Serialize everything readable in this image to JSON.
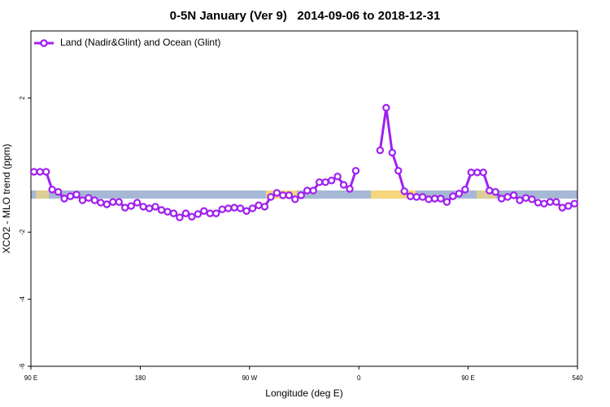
{
  "chart_data": {
    "type": "line",
    "title": "0-5N January (Ver 9)   2014-09-06 to 2018-12-31",
    "x_label": "Longitude (deg E)",
    "y_label": "XCO2 - MLO trend (ppm)",
    "xlim": [
      90,
      540
    ],
    "ylim": [
      -6,
      4
    ],
    "xticks": [
      {
        "value": 90,
        "label": "90 E"
      },
      180,
      {
        "value": 270,
        "label": "90 W"
      },
      {
        "value": 360,
        "label": "0"
      },
      {
        "value": 450,
        "label": "90 E"
      },
      540
    ],
    "yticks": [
      -6,
      -4,
      -2,
      2
    ],
    "legend": "top-left",
    "x": [
      92.5,
      97.5,
      102.5,
      107.5,
      112.5,
      117.5,
      122.5,
      127.5,
      132.5,
      137.5,
      142.5,
      147.5,
      152.5,
      157.5,
      162.5,
      167.5,
      172.5,
      177.5,
      182.5,
      187.5,
      192.5,
      197.5,
      202.5,
      207.5,
      212.5,
      217.5,
      222.5,
      227.5,
      232.5,
      237.5,
      242.5,
      247.5,
      252.5,
      257.5,
      262.5,
      267.5,
      272.5,
      277.5,
      282.5,
      287.5,
      292.5,
      297.5,
      302.5,
      307.5,
      312.5,
      317.5,
      322.5,
      327.5,
      332.5,
      337.5,
      342.5,
      347.5,
      352.5,
      357.5,
      362.5,
      367.5,
      372.5,
      377.5,
      382.5,
      387.5,
      392.5,
      397.5,
      402.5,
      407.5,
      412.5,
      417.5,
      422.5,
      427.5,
      432.5,
      437.5,
      442.5,
      447.5,
      452.5,
      457.5,
      462.5,
      467.5,
      472.5,
      477.5,
      482.5,
      487.5,
      492.5,
      497.5,
      502.5,
      507.5,
      512.5,
      517.5,
      522.5,
      527.5,
      532.5,
      537.5
    ],
    "series": [
      {
        "name": "Land (Nadir&Glint) and Ocean (Glint)",
        "color": "#a020f0",
        "values": [
          -0.2,
          -0.2,
          -0.2,
          -0.73,
          -0.8,
          -1.0,
          -0.93,
          -0.88,
          -1.05,
          -0.98,
          -1.05,
          -1.12,
          -1.17,
          -1.1,
          -1.1,
          -1.27,
          -1.22,
          -1.12,
          -1.24,
          -1.29,
          -1.24,
          -1.34,
          -1.39,
          -1.44,
          -1.56,
          -1.44,
          -1.54,
          -1.46,
          -1.37,
          -1.44,
          -1.44,
          -1.32,
          -1.29,
          -1.27,
          -1.29,
          -1.37,
          -1.29,
          -1.2,
          -1.24,
          -0.95,
          -0.83,
          -0.9,
          -0.9,
          -1.02,
          -0.9,
          -0.76,
          -0.76,
          -0.51,
          -0.51,
          -0.46,
          -0.34,
          -0.59,
          -0.71,
          -0.17,
          null,
          null,
          null,
          0.44,
          1.71,
          0.37,
          -0.17,
          -0.78,
          -0.93,
          -0.95,
          -0.95,
          -1.02,
          -1.0,
          -1.0,
          -1.1,
          -0.93,
          -0.85,
          -0.73,
          -0.22,
          -0.22,
          -0.22,
          -0.76,
          -0.8,
          -1.0,
          -0.95,
          -0.9,
          -1.05,
          -0.98,
          -1.02,
          -1.12,
          -1.15,
          -1.1,
          -1.1,
          -1.27,
          -1.22,
          -1.15
        ]
      }
    ]
  }
}
